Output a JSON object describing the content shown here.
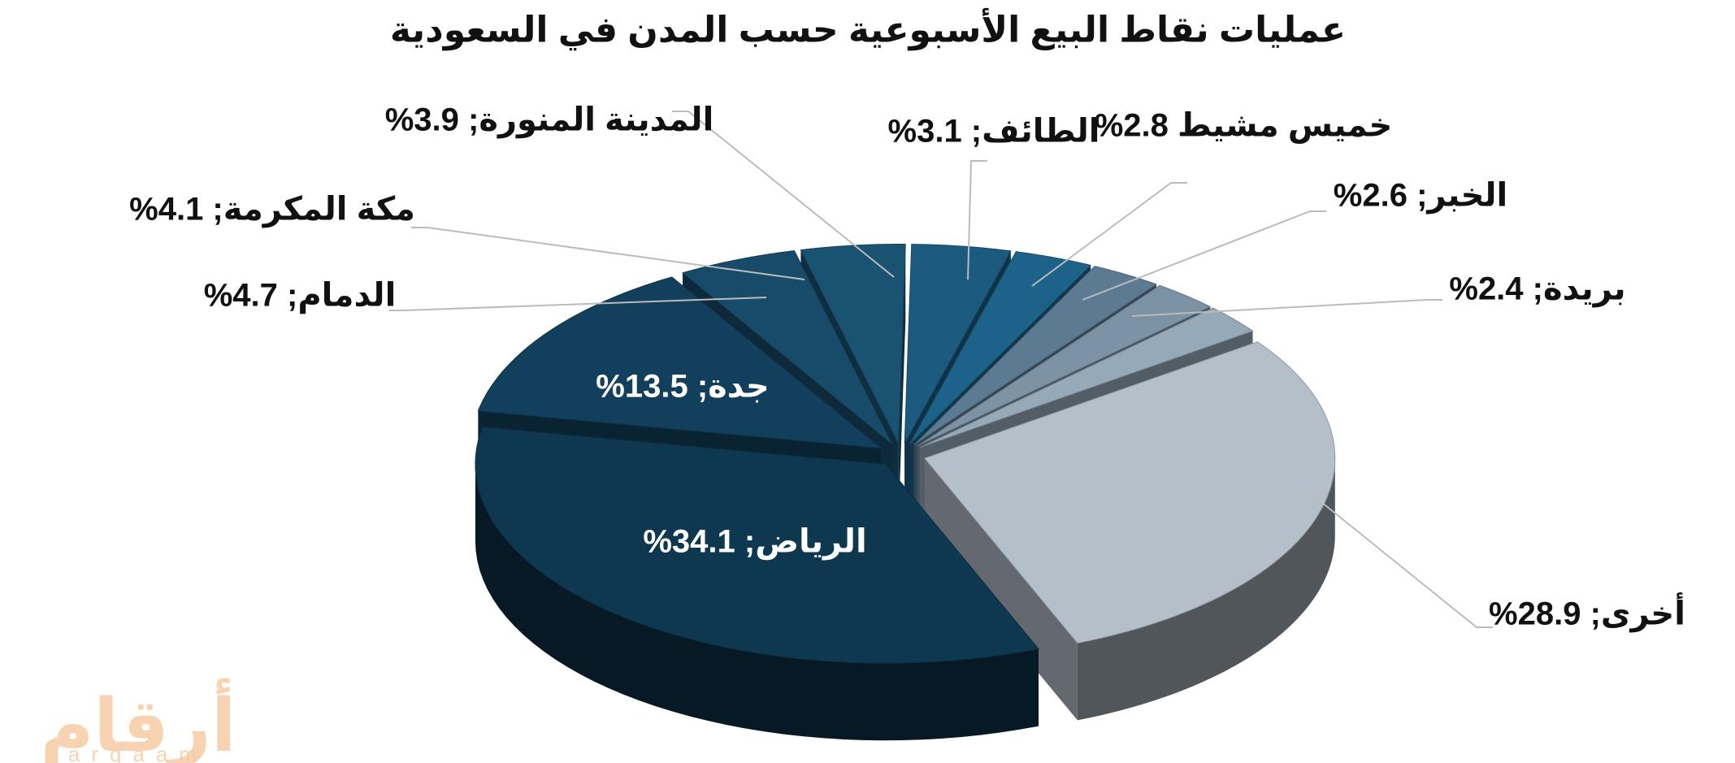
{
  "chart_data": {
    "type": "pie3d",
    "title": "عمليات نقاط البيع الأسبوعية حسب المدن في السعودية",
    "values": [
      3.1,
      2.8,
      2.6,
      2.4,
      28.9,
      34.1,
      13.5,
      4.7,
      4.1,
      3.9
    ],
    "value_labels": [
      "الطائف; 3.1%",
      "خميس مشيط 2.8%",
      "الخبر; 2.6%",
      "بريدة; 2.4%",
      "أخرى; 28.9%",
      "الرياض; 34.1%",
      "جدة; 13.5%",
      "الدمام; 4.7%",
      "مكة المكرمة; 4.1%",
      "المدينة المنورة; 3.9%"
    ],
    "colors": [
      "#1d6288",
      "#5c7b92",
      "#7c93a6",
      "#96a9b8",
      "#b4bfc9",
      "#0e3750",
      "#123f5b",
      "#174b69",
      "#1a5272",
      "#1c5a80"
    ]
  },
  "watermark": {
    "arabic": "أرقام",
    "latin": "arqaam"
  }
}
